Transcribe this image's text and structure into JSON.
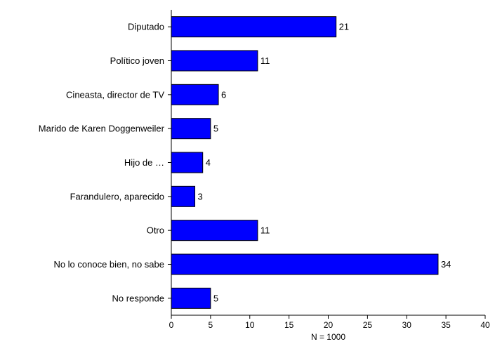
{
  "chart_data": {
    "type": "bar",
    "orientation": "horizontal",
    "categories": [
      "Diputado",
      "Político joven",
      "Cineasta, director de TV",
      "Marido de Karen Doggenweiler",
      "Hijo de …",
      "Farandulero, aparecido",
      "Otro",
      "No lo conoce bien, no sabe",
      "No responde"
    ],
    "values": [
      21,
      11,
      6,
      5,
      4,
      3,
      11,
      34,
      5
    ],
    "value_labels": [
      "21",
      "11",
      "6",
      "5",
      "4",
      "3",
      "11",
      "34",
      "5"
    ],
    "xlabel": "N = 1000",
    "xlim": [
      0,
      40
    ],
    "xticks": [
      0,
      5,
      10,
      15,
      20,
      25,
      30,
      35,
      40
    ],
    "xtick_labels": [
      "0",
      "5",
      "10",
      "15",
      "20",
      "25",
      "30",
      "35",
      "40"
    ],
    "grid": false,
    "colors": {
      "bar_fill": "#0000ff",
      "bar_stroke": "#000000",
      "axis": "#000000"
    }
  }
}
